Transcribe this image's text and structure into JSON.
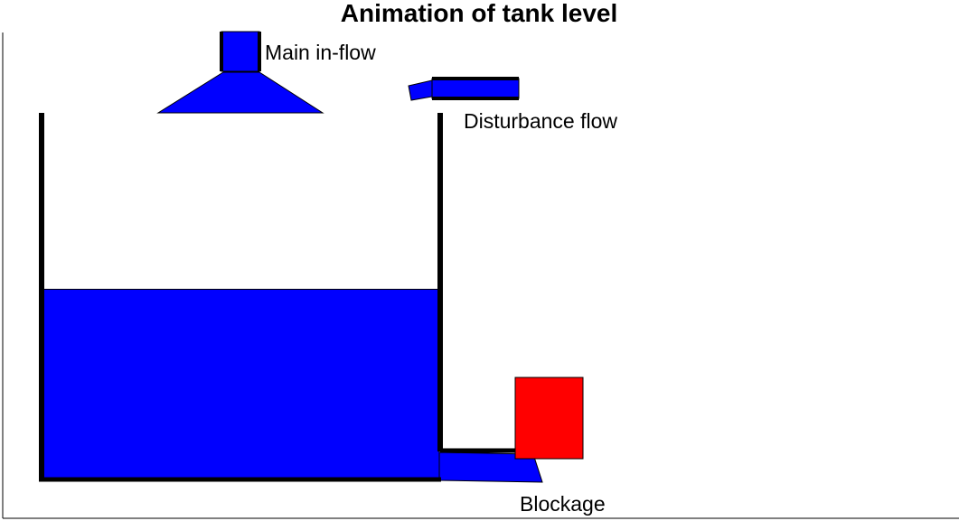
{
  "title": "Animation of tank level",
  "labels": {
    "main_inflow": "Main in-flow",
    "disturbance_flow": "Disturbance flow",
    "blockage": "Blockage"
  },
  "tank": {
    "level_fraction": 0.52
  },
  "colors": {
    "liquid": "#0000ff",
    "wall": "#000000",
    "blockage": "#ff0000",
    "background": "#ffffff"
  }
}
